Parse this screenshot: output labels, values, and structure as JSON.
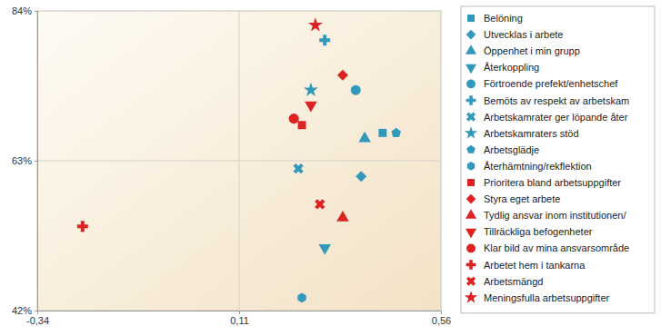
{
  "chart_data": {
    "type": "scatter",
    "xlim": [
      -0.34,
      0.56
    ],
    "xticks": [
      {
        "value": -0.34,
        "label": "-0,34"
      },
      {
        "value": 0.11,
        "label": "0,11"
      },
      {
        "value": 0.56,
        "label": "0,56"
      }
    ],
    "ylim": [
      42,
      84
    ],
    "yticks": [
      {
        "value": 42,
        "label": "42%"
      },
      {
        "value": 63,
        "label": "63%"
      },
      {
        "value": 84,
        "label": "84%"
      }
    ],
    "grid": true,
    "legend": "right",
    "series": [
      {
        "name": "Belöning",
        "color": "#3399bb",
        "marker": "square",
        "x": [
          0.43
        ],
        "values": [
          66.9
        ]
      },
      {
        "name": "Utvecklas i arbete",
        "color": "#3399bb",
        "marker": "diamond",
        "x": [
          0.382
        ],
        "values": [
          60.8
        ]
      },
      {
        "name": "Öppenhet i min grupp",
        "color": "#3399bb",
        "marker": "triangle-up",
        "x": [
          0.39
        ],
        "values": [
          66.1
        ]
      },
      {
        "name": "Återkoppling",
        "color": "#3399bb",
        "marker": "triangle-down",
        "x": [
          0.301
        ],
        "values": [
          50.8
        ]
      },
      {
        "name": "Förtroende prefekt/enhetschef",
        "color": "#3399bb",
        "marker": "circle",
        "x": [
          0.37
        ],
        "values": [
          72.9
        ]
      },
      {
        "name": "Bemöts av respekt av arbetskam",
        "color": "#3399bb",
        "marker": "cross",
        "x": [
          0.301
        ],
        "values": [
          79.9
        ]
      },
      {
        "name": "Arbetskamrater ger löpande åter",
        "color": "#3399bb",
        "marker": "x",
        "x": [
          0.242
        ],
        "values": [
          61.9
        ]
      },
      {
        "name": "Arbetskamraters stöd",
        "color": "#3399bb",
        "marker": "star",
        "x": [
          0.27
        ],
        "values": [
          72.9
        ]
      },
      {
        "name": "Arbetsglädje",
        "color": "#3399bb",
        "marker": "pentagon",
        "x": [
          0.46
        ],
        "values": [
          66.9
        ]
      },
      {
        "name": "Återhämtning/rekflektion",
        "color": "#3399bb",
        "marker": "hexagon",
        "x": [
          0.25
        ],
        "values": [
          43.8
        ]
      },
      {
        "name": "Prioritera bland arbetsuppgifter",
        "color": "#dd2222",
        "marker": "square",
        "x": [
          0.25
        ],
        "values": [
          68.0
        ]
      },
      {
        "name": "Styra eget arbete",
        "color": "#dd2222",
        "marker": "diamond",
        "x": [
          0.341
        ],
        "values": [
          75.0
        ]
      },
      {
        "name": "Tydlig ansvar inom institutionen/",
        "color": "#dd2222",
        "marker": "triangle-up",
        "x": [
          0.341
        ],
        "values": [
          55.0
        ]
      },
      {
        "name": "Tillräckliga befogenheter",
        "color": "#dd2222",
        "marker": "triangle-down",
        "x": [
          0.27
        ],
        "values": [
          70.8
        ]
      },
      {
        "name": "Klar bild av mina ansvarsområde",
        "color": "#dd2222",
        "marker": "circle",
        "x": [
          0.232
        ],
        "values": [
          68.9
        ]
      },
      {
        "name": "Arbetet hem i tankarna",
        "color": "#dd2222",
        "marker": "cross",
        "x": [
          -0.239
        ],
        "values": [
          53.8
        ]
      },
      {
        "name": "Arbetsmängd",
        "color": "#dd2222",
        "marker": "x",
        "x": [
          0.29
        ],
        "values": [
          56.9
        ]
      },
      {
        "name": "Meningsfulla arbetsuppgifter",
        "color": "#dd2222",
        "marker": "star",
        "x": [
          0.28
        ],
        "values": [
          82.0
        ]
      }
    ]
  }
}
